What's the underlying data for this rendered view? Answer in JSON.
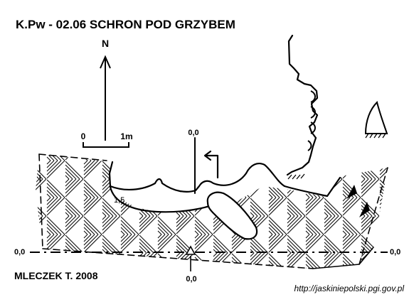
{
  "title": "K.Pw - 02.06  SCHRON POD GRZYBEM",
  "north_label": "N",
  "scale": {
    "zero_label": "0",
    "one_label": "1m"
  },
  "elevations": {
    "top": "0,0",
    "left": "0,0",
    "right": "0,0",
    "bottom": "0,0",
    "inner": "1,5"
  },
  "author": "MLECZEK T. 2008",
  "source_url": "http://jaskiniepolski.pgi.gov.pl",
  "colors": {
    "ink": "#000000",
    "paper": "#ffffff"
  }
}
